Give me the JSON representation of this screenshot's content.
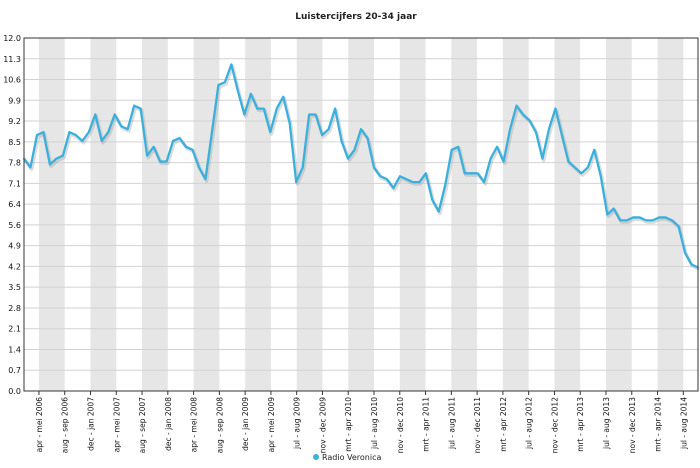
{
  "chart_data": {
    "type": "line",
    "title": "Luistercijfers 20-34 jaar",
    "xlabel": "",
    "ylabel": "",
    "ylim": [
      0,
      12
    ],
    "yticks": [
      "0.0",
      "0.7",
      "1.4",
      "2.1",
      "2.8",
      "3.5",
      "4.2",
      "4.9",
      "5.6",
      "6.4",
      "7.1",
      "7.8",
      "8.5",
      "9.2",
      "9.9",
      "10.6",
      "11.3",
      "12.0"
    ],
    "xtick_labels": [
      "apr - mei 2006",
      "aug - sep 2006",
      "dec - jan 2007",
      "apr - mei 2007",
      "aug - sep 2007",
      "dec - jan 2008",
      "apr - mei 2008",
      "aug - sep 2008",
      "dec - jan 2009",
      "apr - mei 2009",
      "jul - aug 2009",
      "nov - dec 2009",
      "mrt - apr 2010",
      "jul - aug 2010",
      "nov - dec 2010",
      "mrt - apr 2011",
      "jul - aug 2011",
      "nov - dec 2011",
      "mrt - apr 2012",
      "jul - aug 2012",
      "nov - dec 2012",
      "mrt - apr 2013",
      "jul - aug 2013",
      "nov - dec 2013",
      "mrt - apr 2014",
      "jul - aug 2014"
    ],
    "grid": true,
    "legend_position": "bottom-center",
    "series": [
      {
        "name": "Radio Veronica",
        "color": "#3ab0dc",
        "values": [
          7.9,
          7.6,
          8.7,
          8.8,
          7.7,
          7.9,
          8.0,
          8.8,
          8.7,
          8.5,
          8.8,
          9.4,
          8.5,
          8.8,
          9.4,
          9.0,
          8.9,
          9.7,
          9.6,
          8.0,
          8.3,
          7.8,
          7.8,
          8.5,
          8.6,
          8.3,
          8.2,
          7.6,
          7.2,
          8.8,
          10.4,
          10.5,
          11.1,
          10.2,
          9.4,
          10.1,
          9.6,
          9.6,
          8.8,
          9.6,
          10.0,
          9.1,
          7.1,
          7.6,
          9.4,
          9.4,
          8.7,
          8.9,
          9.6,
          8.5,
          7.9,
          8.2,
          8.9,
          8.6,
          7.6,
          7.3,
          7.2,
          6.9,
          7.3,
          7.2,
          7.1,
          7.1,
          7.4,
          6.5,
          6.1,
          7.0,
          8.2,
          8.3,
          7.4,
          7.4,
          7.4,
          7.1,
          7.9,
          8.3,
          7.8,
          8.9,
          9.7,
          9.4,
          9.2,
          8.8,
          7.9,
          8.9,
          9.6,
          8.7,
          7.8,
          7.6,
          7.4,
          7.6,
          8.2,
          7.3,
          6.0,
          6.2,
          5.8,
          5.8,
          5.9,
          5.9,
          5.8,
          5.8,
          5.9,
          5.9,
          5.8,
          5.6,
          4.7,
          4.3,
          4.2
        ]
      }
    ]
  }
}
